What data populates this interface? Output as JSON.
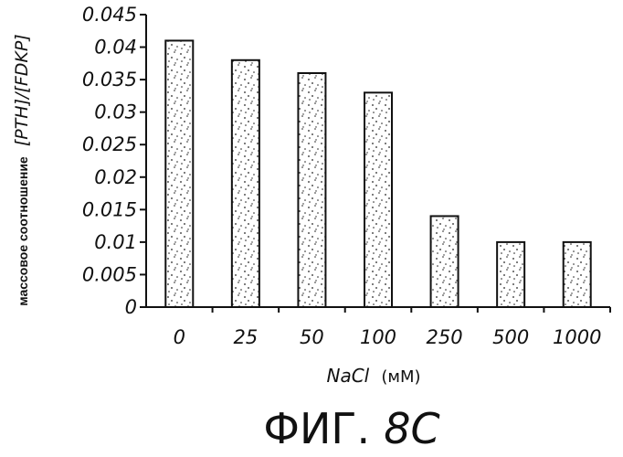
{
  "chart_data": {
    "type": "bar",
    "categories": [
      "0",
      "25",
      "50",
      "100",
      "250",
      "500",
      "1000"
    ],
    "values": [
      0.041,
      0.038,
      0.036,
      0.033,
      0.014,
      0.01,
      0.01
    ],
    "ylim": [
      0,
      0.045
    ],
    "yticks": [
      "0",
      "0.005",
      "0.01",
      "0.015",
      "0.02",
      "0.025",
      "0.03",
      "0.035",
      "0.04",
      "0.045"
    ],
    "ylabel_plain": "массовое соотношение",
    "ylabel_italic": "[PTH]/[FDKP]",
    "xlabel_italic": "NaCl",
    "xlabel_plain": "(мМ)",
    "figure_label_prefix": "ФИГ.",
    "figure_label_suffix": "8C",
    "grid": false,
    "bar_color": "#ffffff",
    "stipple_color": "#222222"
  }
}
